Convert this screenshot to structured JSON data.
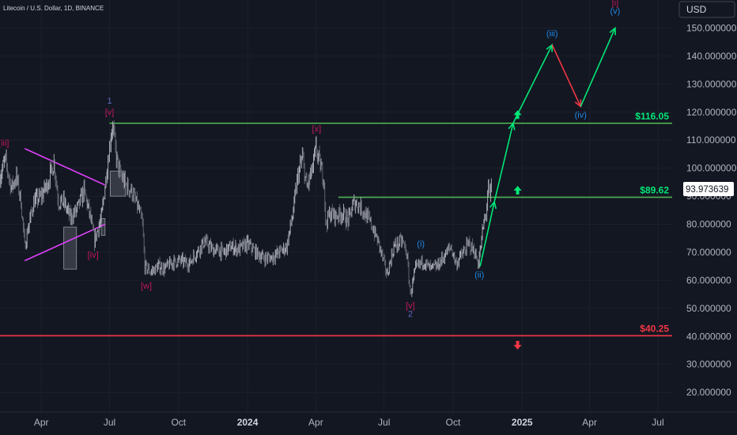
{
  "header": {
    "symbol_title": "Litecoin / U.S. Dollar, 1D, BINANCE",
    "currency_button": "USD"
  },
  "price_label": "93.973639",
  "chart_data": {
    "type": "candlestick",
    "title": "Litecoin / U.S. Dollar, 1D, BINANCE",
    "y_axis": {
      "unit": "USD",
      "ylim": [
        13,
        160
      ],
      "ticks": [
        "20.000000",
        "30.000000",
        "40.000000",
        "50.000000",
        "60.000000",
        "70.000000",
        "80.000000",
        "90.000000",
        "100.000000",
        "110.000000",
        "120.000000",
        "130.000000",
        "140.000000",
        "150.000000"
      ]
    },
    "x_axis": {
      "xlim": [
        "2023-02-05",
        "2025-07-20"
      ],
      "ticks": [
        {
          "label": "Apr",
          "date": "2023-04-01",
          "bold": false
        },
        {
          "label": "Jul",
          "date": "2023-07-01",
          "bold": false
        },
        {
          "label": "Oct",
          "date": "2023-10-01",
          "bold": false
        },
        {
          "label": "2024",
          "date": "2024-01-01",
          "bold": true
        },
        {
          "label": "Apr",
          "date": "2024-04-01",
          "bold": false
        },
        {
          "label": "Jul",
          "date": "2024-07-01",
          "bold": false
        },
        {
          "label": "Oct",
          "date": "2024-10-01",
          "bold": false
        },
        {
          "label": "2025",
          "date": "2025-01-01",
          "bold": true
        },
        {
          "label": "Apr",
          "date": "2025-04-01",
          "bold": false
        },
        {
          "label": "Jul",
          "date": "2025-07-01",
          "bold": false
        }
      ]
    },
    "price_path": [
      [
        "2023-02-05",
        97
      ],
      [
        "2023-02-12",
        103
      ],
      [
        "2023-02-20",
        93
      ],
      [
        "2023-02-27",
        97
      ],
      [
        "2023-03-05",
        88
      ],
      [
        "2023-03-10",
        72
      ],
      [
        "2023-03-14",
        78
      ],
      [
        "2023-03-22",
        88
      ],
      [
        "2023-04-01",
        90
      ],
      [
        "2023-04-10",
        95
      ],
      [
        "2023-04-18",
        102
      ],
      [
        "2023-04-24",
        88
      ],
      [
        "2023-05-01",
        88
      ],
      [
        "2023-05-10",
        82
      ],
      [
        "2023-05-20",
        86
      ],
      [
        "2023-05-28",
        92
      ],
      [
        "2023-06-05",
        83
      ],
      [
        "2023-06-11",
        74
      ],
      [
        "2023-06-15",
        78
      ],
      [
        "2023-06-20",
        82
      ],
      [
        "2023-06-26",
        96
      ],
      [
        "2023-07-02",
        110
      ],
      [
        "2023-07-05",
        116
      ],
      [
        "2023-07-10",
        104
      ],
      [
        "2023-07-15",
        98
      ],
      [
        "2023-07-22",
        94
      ],
      [
        "2023-07-30",
        92
      ],
      [
        "2023-08-08",
        86
      ],
      [
        "2023-08-14",
        80
      ],
      [
        "2023-08-17",
        65
      ],
      [
        "2023-08-25",
        63
      ],
      [
        "2023-09-05",
        65
      ],
      [
        "2023-09-12",
        64
      ],
      [
        "2023-09-20",
        66
      ],
      [
        "2023-10-01",
        67
      ],
      [
        "2023-10-15",
        66
      ],
      [
        "2023-10-25",
        70
      ],
      [
        "2023-11-05",
        74
      ],
      [
        "2023-11-15",
        71
      ],
      [
        "2023-12-01",
        70
      ],
      [
        "2023-12-10",
        72
      ],
      [
        "2023-12-20",
        71
      ],
      [
        "2024-01-01",
        73
      ],
      [
        "2024-01-12",
        70
      ],
      [
        "2024-01-22",
        68
      ],
      [
        "2024-02-01",
        68
      ],
      [
        "2024-02-12",
        70
      ],
      [
        "2024-02-22",
        72
      ],
      [
        "2024-03-01",
        83
      ],
      [
        "2024-03-08",
        97
      ],
      [
        "2024-03-14",
        104
      ],
      [
        "2024-03-20",
        93
      ],
      [
        "2024-03-28",
        100
      ],
      [
        "2024-04-01",
        107
      ],
      [
        "2024-04-05",
        103
      ],
      [
        "2024-04-12",
        96
      ],
      [
        "2024-04-14",
        80
      ],
      [
        "2024-04-20",
        84
      ],
      [
        "2024-04-28",
        83
      ],
      [
        "2024-05-06",
        84
      ],
      [
        "2024-05-14",
        81
      ],
      [
        "2024-05-22",
        88
      ],
      [
        "2024-05-28",
        87
      ],
      [
        "2024-06-05",
        84
      ],
      [
        "2024-06-14",
        80
      ],
      [
        "2024-06-24",
        73
      ],
      [
        "2024-07-05",
        62
      ],
      [
        "2024-07-14",
        72
      ],
      [
        "2024-07-25",
        74
      ],
      [
        "2024-07-31",
        70
      ],
      [
        "2024-08-05",
        55
      ],
      [
        "2024-08-12",
        64
      ],
      [
        "2024-08-22",
        67
      ],
      [
        "2024-09-01",
        64
      ],
      [
        "2024-09-10",
        65
      ],
      [
        "2024-09-20",
        69
      ],
      [
        "2024-09-28",
        72
      ],
      [
        "2024-10-05",
        66
      ],
      [
        "2024-10-15",
        70
      ],
      [
        "2024-10-22",
        73
      ],
      [
        "2024-10-30",
        70
      ],
      [
        "2024-11-03",
        66
      ],
      [
        "2024-11-06",
        70
      ],
      [
        "2024-11-10",
        79
      ],
      [
        "2024-11-14",
        84
      ],
      [
        "2024-11-17",
        93
      ],
      [
        "2024-11-19",
        89
      ],
      [
        "2024-11-21",
        94
      ]
    ],
    "horizontal_levels": [
      {
        "price": 116.05,
        "start": "2023-07-01",
        "label": "$116.05",
        "color": "#00e676",
        "line": "#4caf50"
      },
      {
        "price": 89.62,
        "start": "2024-05-01",
        "label": "$89.62",
        "color": "#00e676",
        "line": "#4caf50"
      },
      {
        "price": 40.25,
        "start": "2023-02-05",
        "label": "$40.25",
        "color": "#f23645",
        "line": "#f23645"
      }
    ],
    "projections": [
      {
        "from": [
          "2024-11-06",
          65
        ],
        "to": [
          "2024-11-25",
          88
        ],
        "color": "#00e676"
      },
      {
        "from": [
          "2024-11-25",
          88
        ],
        "to": [
          "2024-12-20",
          116.05
        ],
        "color": "#00e676"
      },
      {
        "from": [
          "2024-12-20",
          116.05
        ],
        "to": [
          "2025-02-10",
          144
        ],
        "color": "#00e676"
      },
      {
        "from": [
          "2025-02-10",
          144
        ],
        "to": [
          "2025-03-20",
          122
        ],
        "color": "#f23645"
      },
      {
        "from": [
          "2025-03-20",
          122
        ],
        "to": [
          "2025-05-05",
          150
        ],
        "color": "#00e676"
      }
    ],
    "wave_labels": [
      {
        "text": "[iii]",
        "date": "2023-02-10",
        "price": 108,
        "color": "#c2185b"
      },
      {
        "text": "[iv]",
        "date": "2023-06-09",
        "price": 68,
        "color": "#c2185b"
      },
      {
        "text": "1",
        "date": "2023-07-01",
        "price": 123,
        "color": "#5c6bc0"
      },
      {
        "text": "[v]",
        "date": "2023-07-01",
        "price": 119,
        "color": "#c2185b"
      },
      {
        "text": "[w]",
        "date": "2023-08-19",
        "price": 57,
        "color": "#c2185b"
      },
      {
        "text": "[x]",
        "date": "2024-04-02",
        "price": 113,
        "color": "#c2185b"
      },
      {
        "text": "[v]",
        "date": "2024-08-05",
        "price": 50,
        "color": "#c2185b"
      },
      {
        "text": "2",
        "date": "2024-08-05",
        "price": 47,
        "color": "#5c6bc0"
      },
      {
        "text": "(i)",
        "date": "2024-08-19",
        "price": 72,
        "color": "#1e88e5"
      },
      {
        "text": "(ii)",
        "date": "2024-11-05",
        "price": 61,
        "color": "#1e88e5"
      },
      {
        "text": "(iii)",
        "date": "2025-02-10",
        "price": 147,
        "color": "#1e88e5"
      },
      {
        "text": "(iv)",
        "date": "2025-03-20",
        "price": 118,
        "color": "#1e88e5"
      },
      {
        "text": "[i]",
        "date": "2025-05-05",
        "price": 158,
        "color": "#c2185b"
      },
      {
        "text": "(v)",
        "date": "2025-05-05",
        "price": 155,
        "color": "#1e88e5"
      }
    ],
    "arrows": [
      {
        "direction": "up",
        "date": "2024-12-26",
        "price": 119,
        "color": "#00e676"
      },
      {
        "direction": "up",
        "date": "2024-12-26",
        "price": 92,
        "color": "#00e676"
      },
      {
        "direction": "down",
        "date": "2024-12-26",
        "price": 37,
        "color": "#f23645"
      }
    ],
    "triangle": {
      "color": "#e040fb",
      "upper": [
        [
          "2023-03-10",
          107
        ],
        [
          "2023-06-25",
          94
        ]
      ],
      "lower": [
        [
          "2023-03-10",
          67
        ],
        [
          "2023-06-25",
          80
        ]
      ]
    },
    "shaded_boxes": [
      {
        "from": "2023-05-01",
        "to": "2023-05-18",
        "top": 79,
        "bottom": 64
      },
      {
        "from": "2023-06-20",
        "to": "2023-06-25",
        "top": 82,
        "bottom": 76
      },
      {
        "from": "2023-07-02",
        "to": "2023-07-22",
        "top": 99,
        "bottom": 90
      }
    ]
  }
}
